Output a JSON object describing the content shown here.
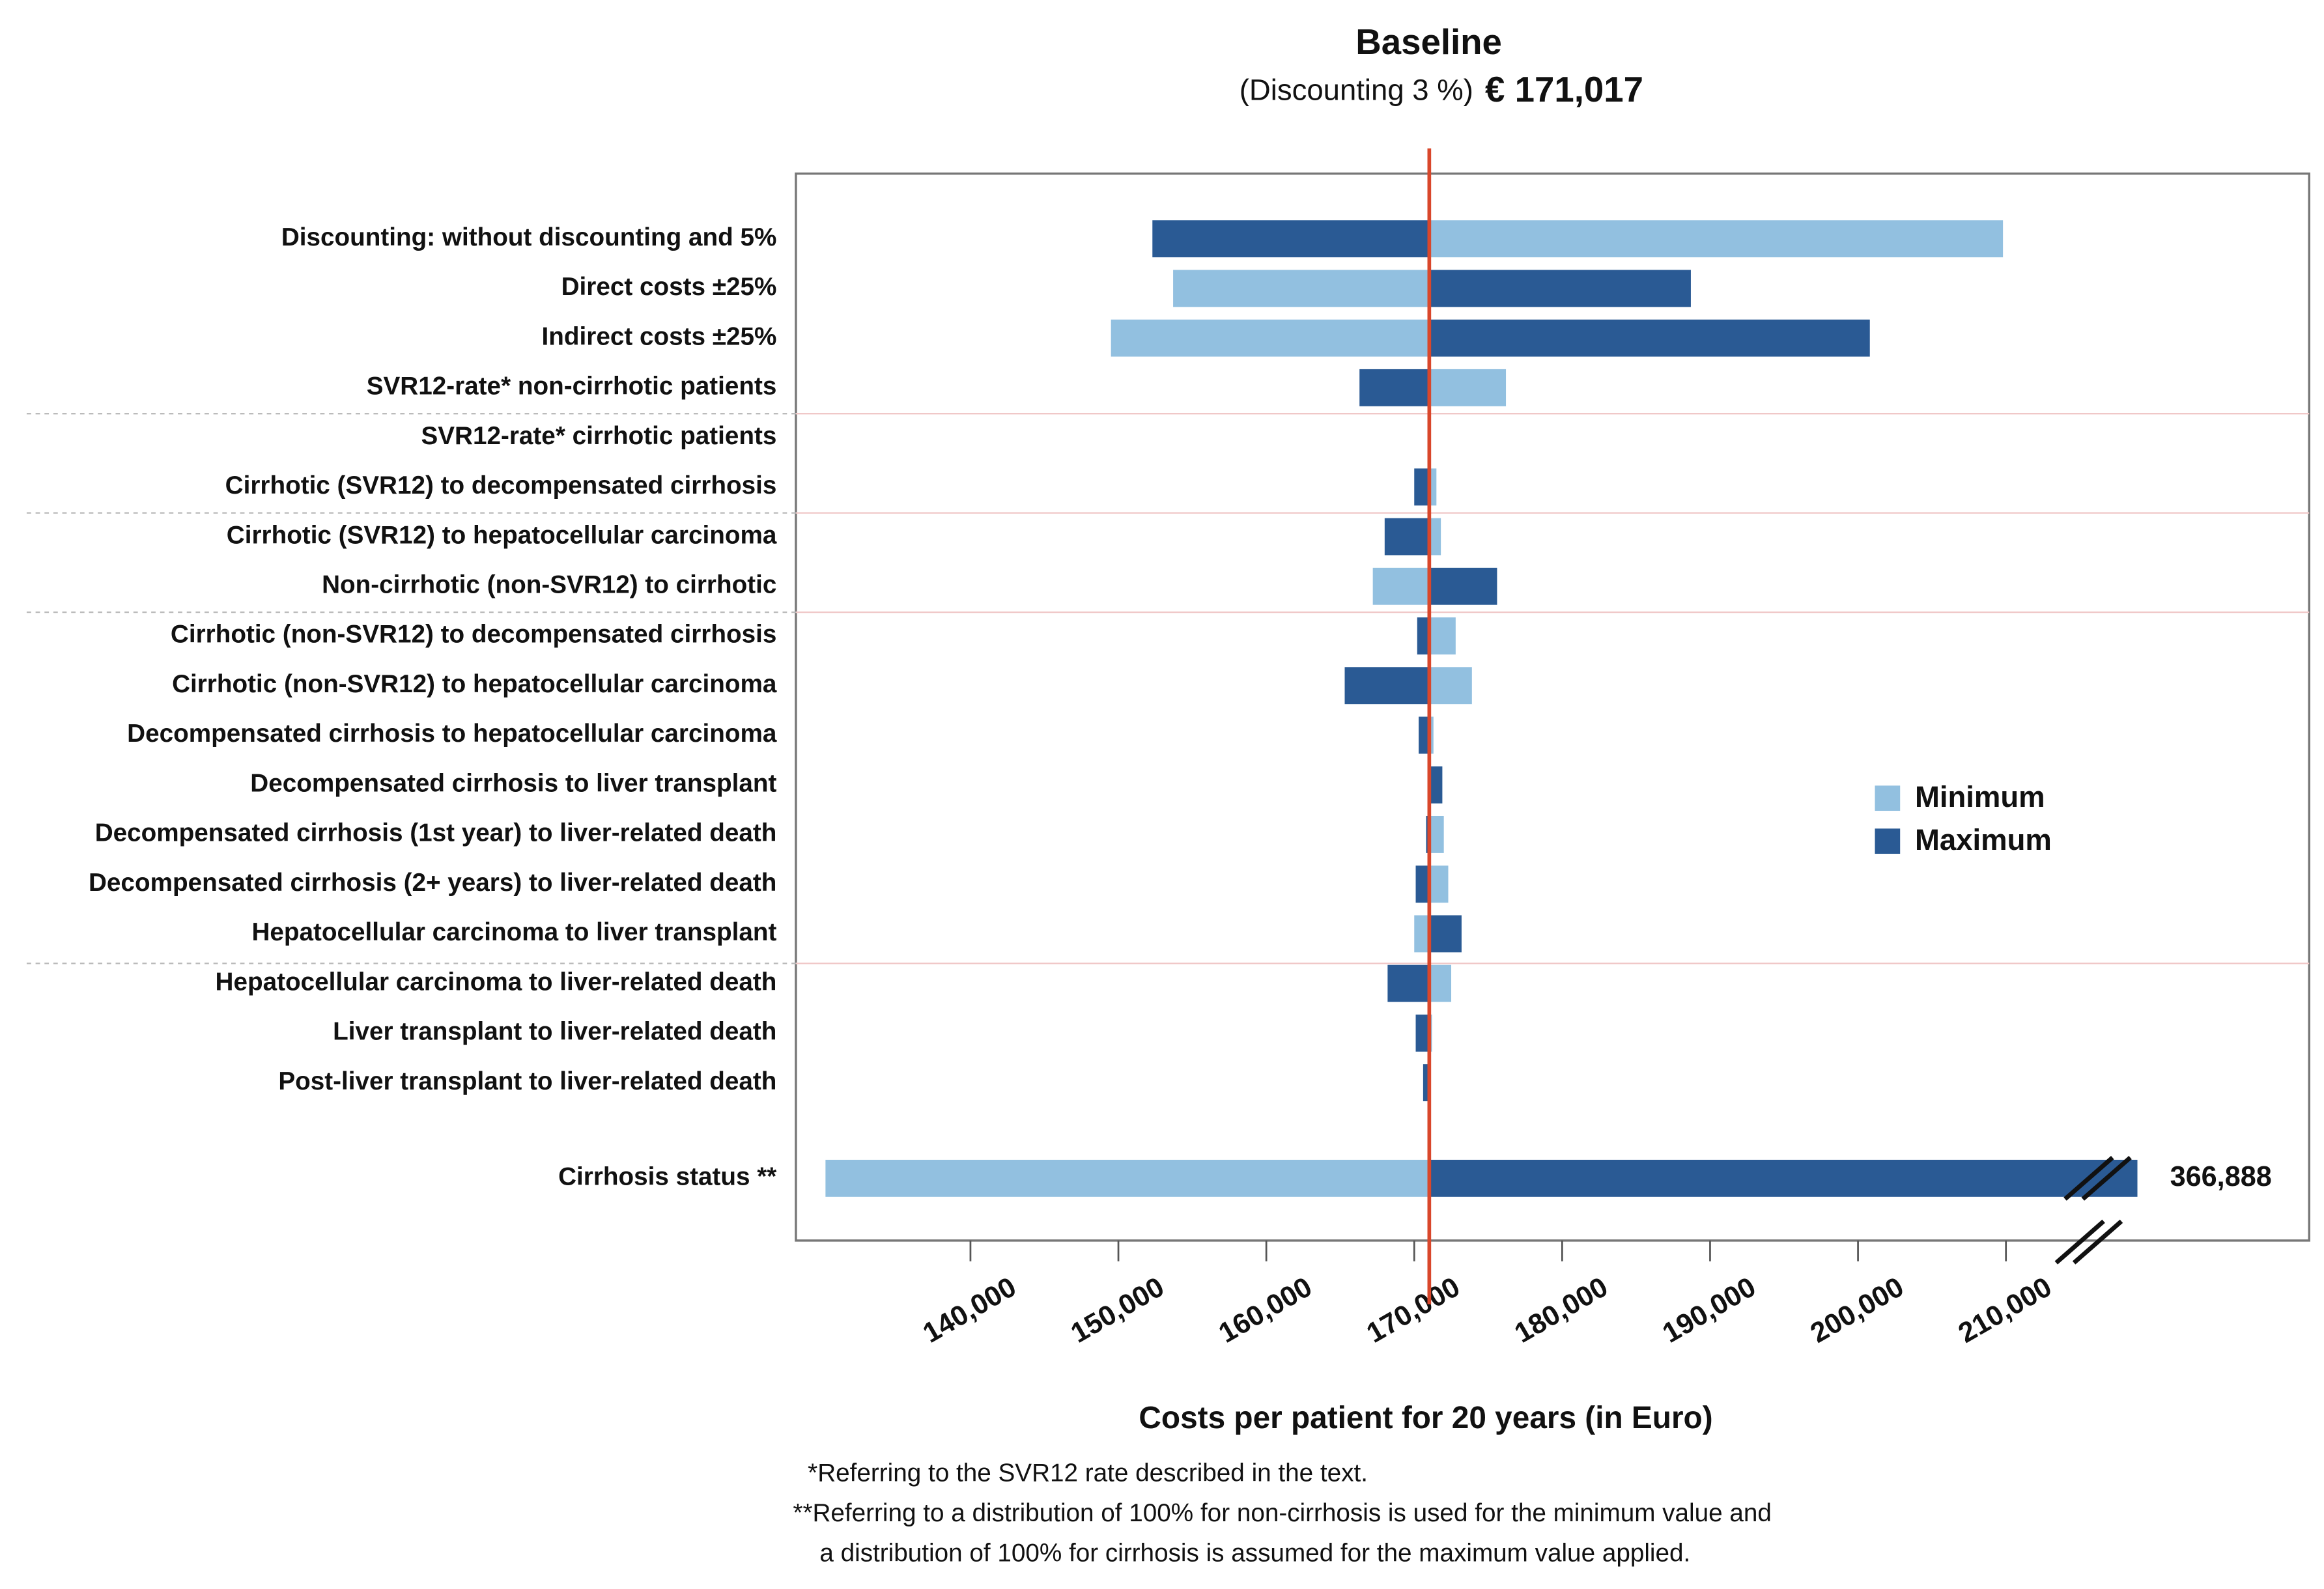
{
  "chart_data": {
    "type": "tornado",
    "title": "Baseline",
    "subtitle": "(Discounting 3 %)",
    "baseline": {
      "value": 171017,
      "label": "€ 171,017"
    },
    "x_label": "Costs per patient for 20 years (in Euro)",
    "footnotes": [
      "*Referring to the SVR12 rate described in the text.",
      "**Referring to a distribution of 100% for non-cirrhosis is used for the minimum value and",
      "a distribution of 100% for cirrhosis is assumed for the maximum value applied."
    ],
    "categories": [
      "Discounting: without discounting and 5%",
      "Direct costs ±25%",
      "Indirect costs ±25%",
      "SVR12-rate* non-cirrhotic patients",
      "SVR12-rate* cirrhotic patients",
      "Cirrhotic (SVR12) to decompensated cirrhosis",
      "Cirrhotic (SVR12) to hepatocellular carcinoma",
      "Non-cirrhotic (non-SVR12) to cirrhotic",
      "Cirrhotic (non-SVR12) to decompensated cirrhosis",
      "Cirrhotic (non-SVR12) to hepatocellular carcinoma",
      "Decompensated cirrhosis to hepatocellular carcinoma",
      "Decompensated cirrhosis to liver transplant",
      "Decompensated cirrhosis (1st year) to liver-related death",
      "Decompensated cirrhosis (2+ years) to liver-related death",
      "Hepatocellular carcinoma to liver transplant",
      "Hepatocellular carcinoma to liver-related death",
      "Liver transplant to liver-related death",
      "Post-liver transplant to liver-related death",
      "Cirrhosis status **"
    ],
    "series": [
      {
        "name": "Minimum",
        "color": "#92c0e0",
        "values": [
          209800,
          153700,
          149500,
          176200,
          null,
          171500,
          171800,
          167200,
          172800,
          173900,
          171300,
          170900,
          172000,
          172300,
          170000,
          172500,
          171200,
          171100,
          130200
        ]
      },
      {
        "name": "Maximum",
        "color": "#2a5a94",
        "values": [
          152300,
          188700,
          200800,
          166300,
          null,
          170000,
          168000,
          175600,
          170200,
          165300,
          170300,
          171900,
          170800,
          170100,
          173200,
          168200,
          170100,
          170600,
          366888
        ],
        "value_labels": [
          null,
          null,
          null,
          null,
          null,
          null,
          null,
          null,
          null,
          null,
          null,
          null,
          null,
          null,
          null,
          null,
          null,
          null,
          "366,888"
        ]
      }
    ],
    "xlim": [
      128200,
      378500
    ],
    "x_break": {
      "from": 215000,
      "to": 363000
    },
    "xticks": [
      {
        "value": 140000,
        "label": "140,000"
      },
      {
        "value": 150000,
        "label": "150,000"
      },
      {
        "value": 160000,
        "label": "160,000"
      },
      {
        "value": 170000,
        "label": "170,000"
      },
      {
        "value": 180000,
        "label": "180,000"
      },
      {
        "value": 190000,
        "label": "190,000"
      },
      {
        "value": 200000,
        "label": "200,000"
      },
      {
        "value": 210000,
        "label": "210,000"
      }
    ],
    "legend": "right"
  }
}
